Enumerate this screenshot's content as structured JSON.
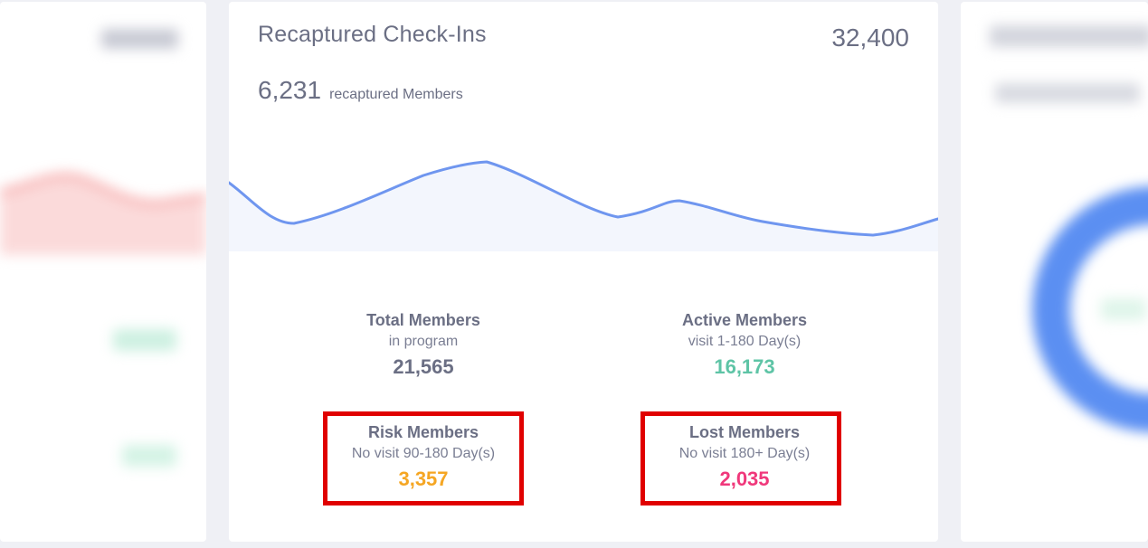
{
  "main_card": {
    "title": "Recaptured Check-Ins",
    "total_checkins": "32,400",
    "recaptured_count": "6,231",
    "recaptured_label": "recaptured Members",
    "stats": {
      "total": {
        "title": "Total Members",
        "subtitle": "in program",
        "value": "21,565",
        "color": "#6b6f84"
      },
      "active": {
        "title": "Active Members",
        "subtitle": "visit 1-180 Day(s)",
        "value": "16,173",
        "color": "#5ec4a6"
      },
      "risk": {
        "title": "Risk Members",
        "subtitle": "No visit 90-180 Day(s)",
        "value": "3,357",
        "color": "#f5a623"
      },
      "lost": {
        "title": "Lost Members",
        "subtitle": "No visit 180+ Day(s)",
        "value": "2,035",
        "color": "#f0387b"
      }
    }
  },
  "colors": {
    "sparkline_stroke": "#6f96ef",
    "sparkline_fill": "#f3f6fd",
    "highlight": "#e00000"
  }
}
